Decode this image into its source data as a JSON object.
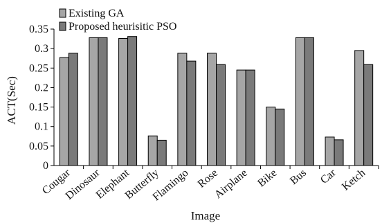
{
  "chart_data": {
    "type": "bar",
    "xlabel": "Image",
    "ylabel": "ACT(Sec)",
    "ylim": [
      0,
      0.35
    ],
    "yticks": [
      "0",
      "0.05",
      "0.1",
      "0.15",
      "0.2",
      "0.25",
      "0.3",
      "0.35"
    ],
    "categories": [
      "Cougar",
      "Dinosaur",
      "Elephant",
      "Butterfly",
      "Flamingo",
      "Rose",
      "Airplane",
      "Bike",
      "Bus",
      "Car",
      "Ketch"
    ],
    "series": [
      {
        "name": "Existing GA",
        "color": "#a6a6a6",
        "values": [
          0.277,
          0.328,
          0.326,
          0.076,
          0.288,
          0.288,
          0.245,
          0.15,
          0.328,
          0.073,
          0.295
        ]
      },
      {
        "name": "Proposed heurisitic PSO",
        "color": "#7a7a7a",
        "values": [
          0.288,
          0.328,
          0.331,
          0.065,
          0.268,
          0.259,
          0.245,
          0.145,
          0.328,
          0.066,
          0.259
        ]
      }
    ],
    "legend_position": "top-left",
    "grid": false
  }
}
